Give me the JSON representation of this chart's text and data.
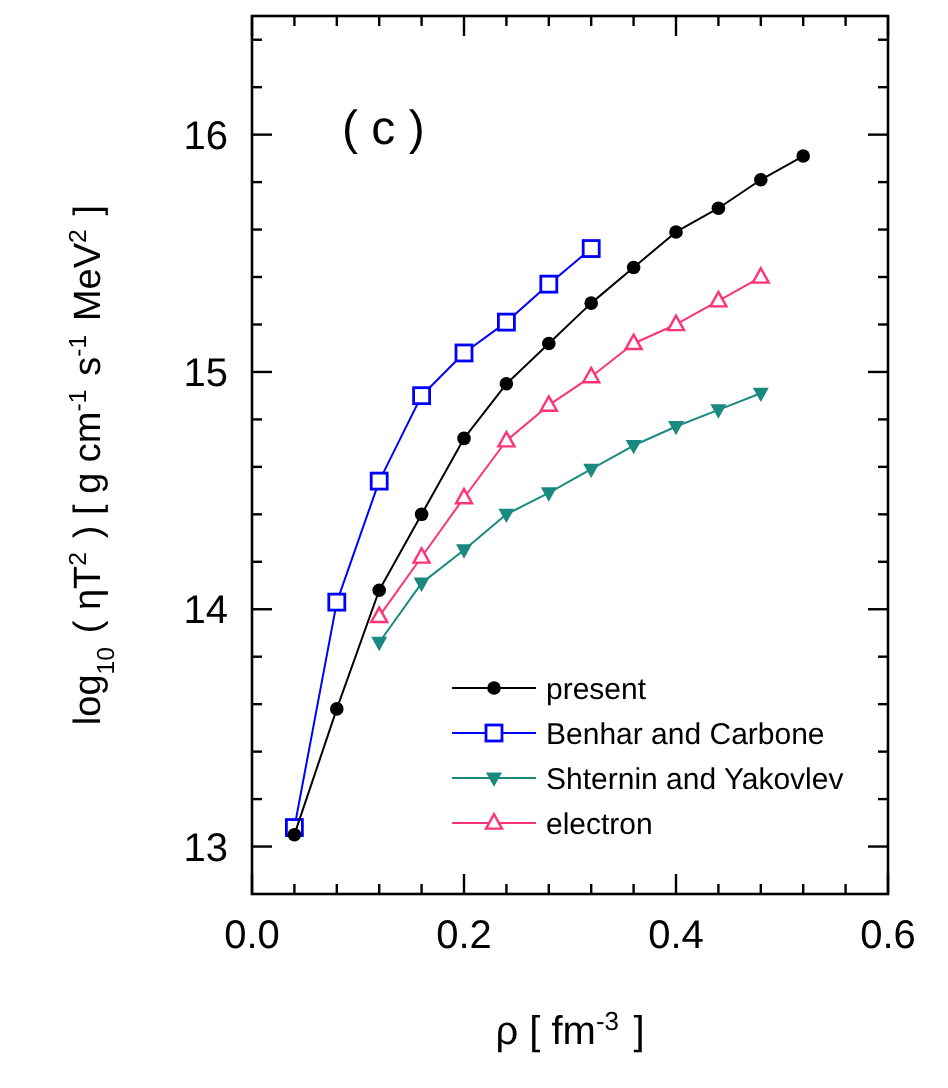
{
  "chart_data": {
    "type": "line",
    "xlabel": "ρ [ fm$^{-3}$ ]",
    "ylabel": "log$_{10}$ ( ηT$^{2}$ ) [ g cm$^{-1}$ s$^{-1}$ MeV$^{2}$ ]",
    "annotations": [
      "( c )"
    ],
    "xlim": [
      0,
      0.6
    ],
    "ylim": [
      12.8,
      16.5
    ],
    "xticks": [
      {
        "value": 0,
        "label": "0.0"
      },
      {
        "value": 0.04,
        "label": null
      },
      {
        "value": 0.08,
        "label": null
      },
      {
        "value": 0.12,
        "label": null
      },
      {
        "value": 0.16,
        "label": null
      },
      {
        "value": 0.2,
        "label": "0.2"
      },
      {
        "value": 0.24,
        "label": null
      },
      {
        "value": 0.28,
        "label": null
      },
      {
        "value": 0.32,
        "label": null
      },
      {
        "value": 0.36,
        "label": null
      },
      {
        "value": 0.4,
        "label": "0.4"
      },
      {
        "value": 0.44,
        "label": null
      },
      {
        "value": 0.48,
        "label": null
      },
      {
        "value": 0.52,
        "label": null
      },
      {
        "value": 0.56,
        "label": null
      },
      {
        "value": 0.6,
        "label": "0.6"
      }
    ],
    "yticks": [
      {
        "value": 13.2,
        "label": null
      },
      {
        "value": 13.4,
        "label": null
      },
      {
        "value": 13.6,
        "label": null
      },
      {
        "value": 13.8,
        "label": null
      },
      13,
      14,
      {
        "value": 14.2,
        "label": null
      },
      {
        "value": 14.4,
        "label": null
      },
      {
        "value": 14.6,
        "label": null
      },
      {
        "value": 14.8,
        "label": null
      },
      15,
      {
        "value": 15.2,
        "label": null
      },
      {
        "value": 15.4,
        "label": null
      },
      {
        "value": 15.6,
        "label": null
      },
      {
        "value": 15.8,
        "label": null
      },
      16,
      {
        "value": 16.2,
        "label": null
      },
      {
        "value": 16.4,
        "label": null
      }
    ],
    "grid": false,
    "legend": "bottom right",
    "line_style": "solid",
    "series": [
      {
        "name": "present",
        "color": "#000000",
        "marker": "circle",
        "x": [
          0.04,
          0.08,
          0.12,
          0.16,
          0.2,
          0.24,
          0.28,
          0.32,
          0.36,
          0.4,
          0.44,
          0.48,
          0.52
        ],
        "values": [
          13.05,
          13.58,
          14.08,
          14.4,
          14.72,
          14.95,
          15.12,
          15.29,
          15.44,
          15.59,
          15.69,
          15.81,
          15.91
        ]
      },
      {
        "name": "Benhar and Carbone",
        "color": "#0000ff",
        "marker": "square",
        "x": [
          0.04,
          0.08,
          0.12,
          0.16,
          0.2,
          0.24,
          0.28,
          0.32
        ],
        "values": [
          13.08,
          14.03,
          14.54,
          14.9,
          15.08,
          15.21,
          15.37,
          15.52
        ]
      },
      {
        "name": "Shternin and Yakovlev",
        "color": "#1a8a80",
        "marker": "triangle-down",
        "x": [
          0.12,
          0.16,
          0.2,
          0.24,
          0.28,
          0.32,
          0.36,
          0.4,
          0.44,
          0.48
        ],
        "values": [
          13.86,
          14.11,
          14.25,
          14.4,
          14.49,
          14.59,
          14.69,
          14.77,
          14.84,
          14.91
        ]
      },
      {
        "name": "electron",
        "color": "#ff3377",
        "marker": "triangle",
        "x": [
          0.12,
          0.16,
          0.2,
          0.24,
          0.28,
          0.32,
          0.36,
          0.4,
          0.44,
          0.48
        ],
        "values": [
          13.97,
          14.22,
          14.47,
          14.71,
          14.86,
          14.98,
          15.12,
          15.2,
          15.3,
          15.4
        ]
      }
    ]
  }
}
